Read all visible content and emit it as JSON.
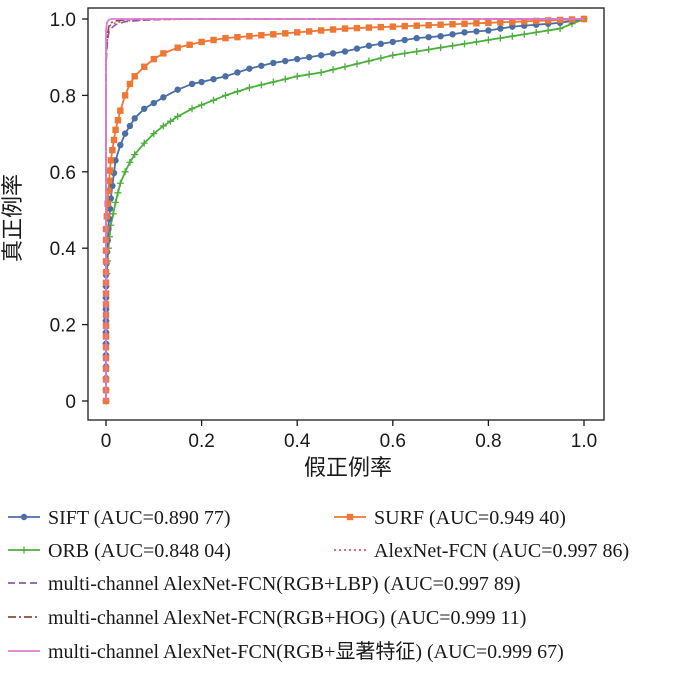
{
  "chart_data": {
    "type": "line",
    "title": "",
    "xlabel": "假正例率",
    "ylabel": "真正例率",
    "xlim": [
      0,
      1.0
    ],
    "ylim": [
      0,
      1.0
    ],
    "xticks": [
      "0",
      "0.2",
      "0.4",
      "0.6",
      "0.8",
      "1.0"
    ],
    "yticks": [
      "0",
      "0.2",
      "0.4",
      "0.6",
      "0.8",
      "1.0"
    ],
    "grid": false,
    "legend_placement": "below",
    "series": [
      {
        "name": "SIFT (AUC=0.890 77)",
        "color": "#4a6fa5",
        "line_style": "solid",
        "marker": "circle",
        "points": [
          [
            0,
            0
          ],
          [
            0,
            0.33
          ],
          [
            0.005,
            0.45
          ],
          [
            0.01,
            0.53
          ],
          [
            0.02,
            0.63
          ],
          [
            0.03,
            0.67
          ],
          [
            0.04,
            0.7
          ],
          [
            0.05,
            0.72
          ],
          [
            0.06,
            0.74
          ],
          [
            0.08,
            0.765
          ],
          [
            0.1,
            0.78
          ],
          [
            0.12,
            0.795
          ],
          [
            0.15,
            0.815
          ],
          [
            0.18,
            0.83
          ],
          [
            0.2,
            0.835
          ],
          [
            0.25,
            0.85
          ],
          [
            0.3,
            0.87
          ],
          [
            0.35,
            0.885
          ],
          [
            0.4,
            0.895
          ],
          [
            0.45,
            0.905
          ],
          [
            0.5,
            0.915
          ],
          [
            0.55,
            0.93
          ],
          [
            0.6,
            0.94
          ],
          [
            0.65,
            0.95
          ],
          [
            0.7,
            0.955
          ],
          [
            0.75,
            0.965
          ],
          [
            0.8,
            0.97
          ],
          [
            0.85,
            0.98
          ],
          [
            0.9,
            0.985
          ],
          [
            0.95,
            0.99
          ],
          [
            1.0,
            1.0
          ]
        ]
      },
      {
        "name": "SURF (AUC=0.949 40)",
        "color": "#ee7733",
        "line_style": "solid",
        "marker": "square",
        "points": [
          [
            0,
            0
          ],
          [
            0,
            0.45
          ],
          [
            0.005,
            0.55
          ],
          [
            0.01,
            0.63
          ],
          [
            0.02,
            0.71
          ],
          [
            0.03,
            0.76
          ],
          [
            0.04,
            0.8
          ],
          [
            0.05,
            0.83
          ],
          [
            0.06,
            0.85
          ],
          [
            0.08,
            0.875
          ],
          [
            0.1,
            0.895
          ],
          [
            0.12,
            0.91
          ],
          [
            0.15,
            0.925
          ],
          [
            0.2,
            0.94
          ],
          [
            0.25,
            0.95
          ],
          [
            0.3,
            0.955
          ],
          [
            0.4,
            0.965
          ],
          [
            0.5,
            0.975
          ],
          [
            0.6,
            0.98
          ],
          [
            0.7,
            0.985
          ],
          [
            0.8,
            0.99
          ],
          [
            0.9,
            0.995
          ],
          [
            1.0,
            1.0
          ]
        ]
      },
      {
        "name": "ORB (AUC=0.848 04)",
        "color": "#4caf3c",
        "line_style": "solid",
        "marker": "plus",
        "points": [
          [
            0,
            0
          ],
          [
            0,
            0.3
          ],
          [
            0.005,
            0.4
          ],
          [
            0.01,
            0.46
          ],
          [
            0.02,
            0.52
          ],
          [
            0.03,
            0.57
          ],
          [
            0.04,
            0.6
          ],
          [
            0.05,
            0.625
          ],
          [
            0.06,
            0.645
          ],
          [
            0.08,
            0.675
          ],
          [
            0.1,
            0.7
          ],
          [
            0.12,
            0.72
          ],
          [
            0.15,
            0.745
          ],
          [
            0.18,
            0.765
          ],
          [
            0.2,
            0.775
          ],
          [
            0.25,
            0.8
          ],
          [
            0.3,
            0.82
          ],
          [
            0.35,
            0.835
          ],
          [
            0.4,
            0.85
          ],
          [
            0.45,
            0.86
          ],
          [
            0.5,
            0.875
          ],
          [
            0.55,
            0.89
          ],
          [
            0.6,
            0.905
          ],
          [
            0.65,
            0.915
          ],
          [
            0.7,
            0.925
          ],
          [
            0.75,
            0.935
          ],
          [
            0.8,
            0.945
          ],
          [
            0.85,
            0.955
          ],
          [
            0.9,
            0.965
          ],
          [
            0.95,
            0.975
          ],
          [
            1.0,
            1.0
          ]
        ]
      },
      {
        "name": "AlexNet-FCN (AUC=0.997 86)",
        "color": "#d45a64",
        "line_style": "dotted",
        "marker": "none",
        "points": [
          [
            0,
            0
          ],
          [
            0,
            0.9
          ],
          [
            0.003,
            0.95
          ],
          [
            0.006,
            0.975
          ],
          [
            0.01,
            0.985
          ],
          [
            0.02,
            0.99
          ],
          [
            0.04,
            0.995
          ],
          [
            0.1,
            0.998
          ],
          [
            0.2,
            1.0
          ],
          [
            1.0,
            1.0
          ]
        ]
      },
      {
        "name": "multi-channel AlexNet-FCN(RGB+LBP) (AUC=0.997 89)",
        "color": "#8a5ab0",
        "line_style": "dashed",
        "marker": "none",
        "points": [
          [
            0,
            0
          ],
          [
            0,
            0.88
          ],
          [
            0.003,
            0.94
          ],
          [
            0.006,
            0.965
          ],
          [
            0.01,
            0.975
          ],
          [
            0.02,
            0.985
          ],
          [
            0.04,
            0.993
          ],
          [
            0.08,
            0.997
          ],
          [
            0.15,
            1.0
          ],
          [
            1.0,
            1.0
          ]
        ]
      },
      {
        "name": "multi-channel AlexNet-FCN(RGB+HOG) (AUC=0.999 11)",
        "color": "#8b4a3c",
        "line_style": "dashdot",
        "marker": "none",
        "points": [
          [
            0,
            0
          ],
          [
            0,
            0.92
          ],
          [
            0.003,
            0.96
          ],
          [
            0.006,
            0.98
          ],
          [
            0.01,
            0.99
          ],
          [
            0.02,
            0.995
          ],
          [
            0.05,
            0.999
          ],
          [
            0.1,
            1.0
          ],
          [
            1.0,
            1.0
          ]
        ]
      },
      {
        "name": "multi-channel AlexNet-FCN(RGB+显著特征) (AUC=0.999 67)",
        "color": "#e07bd0",
        "line_style": "solid",
        "marker": "none",
        "points": [
          [
            0,
            0
          ],
          [
            0,
            0.97
          ],
          [
            0.002,
            0.99
          ],
          [
            0.005,
            0.997
          ],
          [
            0.01,
            1.0
          ],
          [
            1.0,
            1.0
          ]
        ]
      }
    ]
  }
}
